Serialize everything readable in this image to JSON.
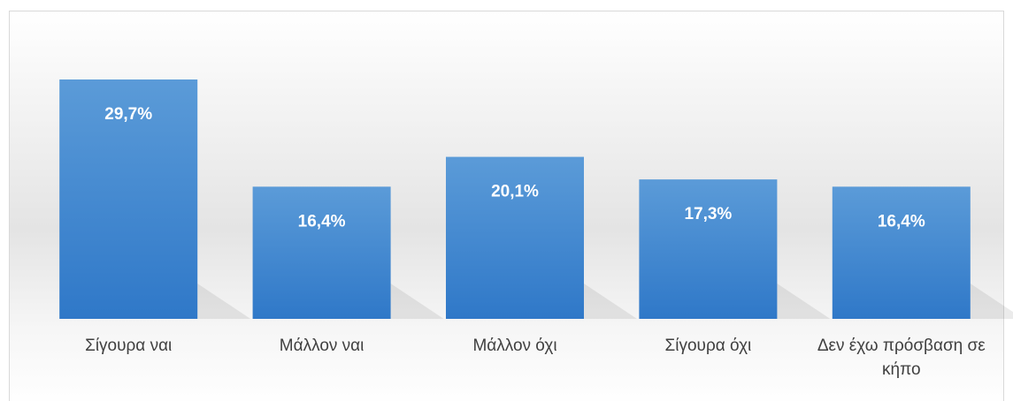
{
  "chart_data": {
    "type": "bar",
    "categories": [
      "Σίγουρα ναι",
      "Μάλλον ναι",
      "Μάλλον όχι",
      "Σίγουρα όχι",
      "Δεν έχω πρόσβαση σε κήπο"
    ],
    "values": [
      29.7,
      16.4,
      20.1,
      17.3,
      16.4
    ],
    "value_labels": [
      "29,7%",
      "16,4%",
      "20,1%",
      "17,3%",
      "16,4%"
    ],
    "color": "#4a8ad2",
    "ylim": [
      0,
      32
    ]
  }
}
